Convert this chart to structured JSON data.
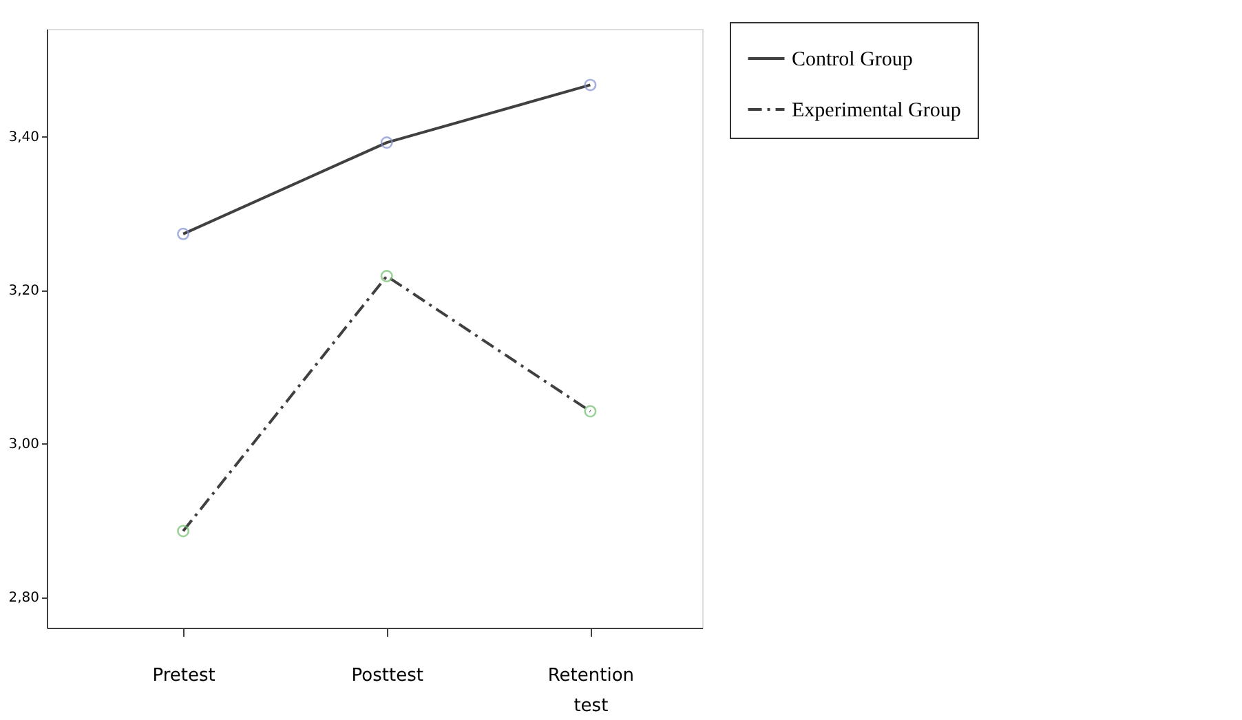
{
  "chart_data": {
    "type": "line",
    "categories": [
      "Pretest",
      "Posttest",
      "Retention test"
    ],
    "series": [
      {
        "name": "Control Group",
        "color": "#404040",
        "colors": [
          "#8090d0",
          "#8090d0",
          "#8090d0"
        ],
        "line_style": "solid",
        "values": [
          3.273,
          3.392,
          3.467
        ]
      },
      {
        "name": "Experimental Group",
        "color": "#404040",
        "colors": [
          "#70c070",
          "#70c070",
          "#70c070"
        ],
        "line_style": "dashed",
        "values": [
          2.886,
          3.218,
          3.042
        ]
      }
    ],
    "ylim": [
      2.76,
      3.54
    ],
    "yticks": [
      {
        "value": 2.8,
        "label": "2,80"
      },
      {
        "value": 3.0,
        "label": "3,00"
      },
      {
        "value": 3.2,
        "label": "3,20"
      },
      {
        "value": 3.4,
        "label": "3,40"
      }
    ],
    "marker": "circle",
    "grid": false,
    "legend": "top right"
  }
}
